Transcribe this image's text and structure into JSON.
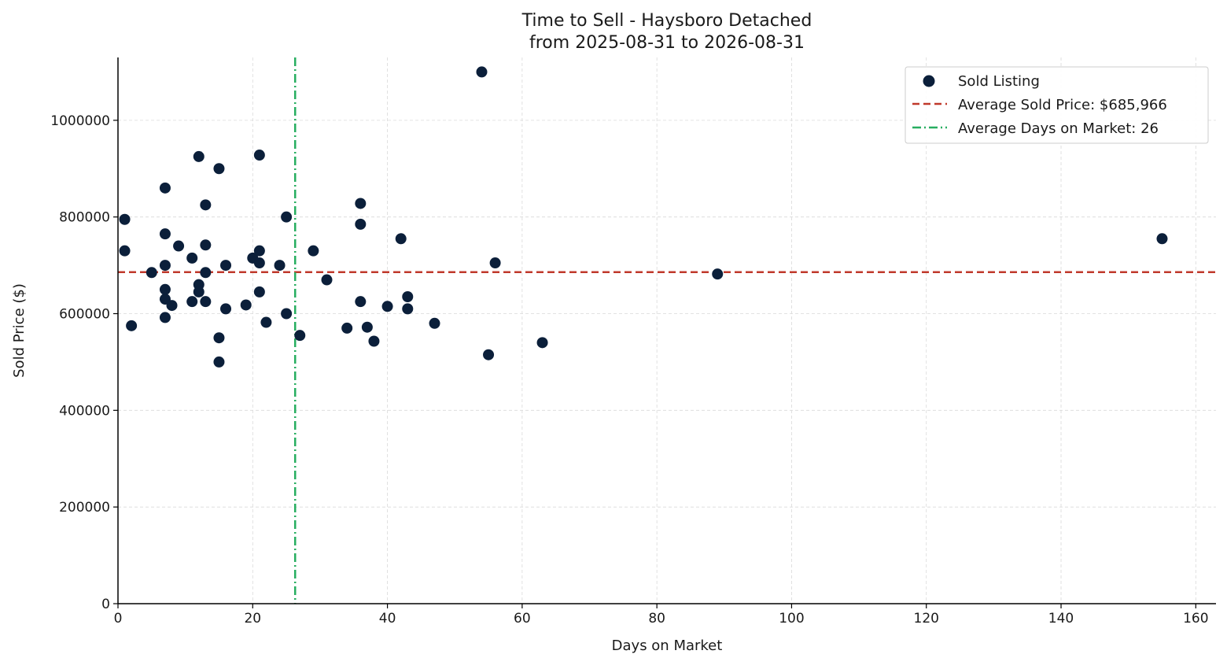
{
  "chart_data": {
    "type": "scatter",
    "title": "Time to Sell - Haysboro Detached",
    "subtitle": "from 2025-08-31 to 2026-08-31",
    "xlabel": "Days on Market",
    "ylabel": "Sold Price ($)",
    "xlim": [
      0,
      163
    ],
    "ylim": [
      0,
      1130000
    ],
    "xticks": [
      0,
      20,
      40,
      60,
      80,
      100,
      120,
      140,
      160
    ],
    "yticks": [
      0,
      200000,
      400000,
      600000,
      800000,
      1000000
    ],
    "grid": true,
    "legend_position": "top-right",
    "series": [
      {
        "name": "Sold Listing",
        "color": "#0b1f3a",
        "points": [
          {
            "x": 1,
            "y": 795000
          },
          {
            "x": 1,
            "y": 730000
          },
          {
            "x": 2,
            "y": 575000
          },
          {
            "x": 5,
            "y": 685000
          },
          {
            "x": 7,
            "y": 860000
          },
          {
            "x": 7,
            "y": 765000
          },
          {
            "x": 7,
            "y": 700000
          },
          {
            "x": 7,
            "y": 650000
          },
          {
            "x": 7,
            "y": 630000
          },
          {
            "x": 7,
            "y": 592000
          },
          {
            "x": 8,
            "y": 617000
          },
          {
            "x": 9,
            "y": 740000
          },
          {
            "x": 11,
            "y": 715000
          },
          {
            "x": 11,
            "y": 625000
          },
          {
            "x": 12,
            "y": 925000
          },
          {
            "x": 12,
            "y": 660000
          },
          {
            "x": 12,
            "y": 645000
          },
          {
            "x": 13,
            "y": 825000
          },
          {
            "x": 13,
            "y": 742000
          },
          {
            "x": 13,
            "y": 685000
          },
          {
            "x": 13,
            "y": 625000
          },
          {
            "x": 15,
            "y": 900000
          },
          {
            "x": 15,
            "y": 550000
          },
          {
            "x": 15,
            "y": 500000
          },
          {
            "x": 16,
            "y": 700000
          },
          {
            "x": 16,
            "y": 610000
          },
          {
            "x": 19,
            "y": 618000
          },
          {
            "x": 20,
            "y": 715000
          },
          {
            "x": 21,
            "y": 928000
          },
          {
            "x": 21,
            "y": 730000
          },
          {
            "x": 21,
            "y": 705000
          },
          {
            "x": 21,
            "y": 645000
          },
          {
            "x": 22,
            "y": 582000
          },
          {
            "x": 24,
            "y": 700000
          },
          {
            "x": 25,
            "y": 800000
          },
          {
            "x": 25,
            "y": 600000
          },
          {
            "x": 27,
            "y": 555000
          },
          {
            "x": 29,
            "y": 730000
          },
          {
            "x": 31,
            "y": 670000
          },
          {
            "x": 34,
            "y": 570000
          },
          {
            "x": 36,
            "y": 828000
          },
          {
            "x": 36,
            "y": 785000
          },
          {
            "x": 36,
            "y": 625000
          },
          {
            "x": 37,
            "y": 572000
          },
          {
            "x": 38,
            "y": 543000
          },
          {
            "x": 40,
            "y": 615000
          },
          {
            "x": 42,
            "y": 755000
          },
          {
            "x": 43,
            "y": 635000
          },
          {
            "x": 43,
            "y": 610000
          },
          {
            "x": 47,
            "y": 580000
          },
          {
            "x": 54,
            "y": 1100000
          },
          {
            "x": 55,
            "y": 515000
          },
          {
            "x": 56,
            "y": 705000
          },
          {
            "x": 63,
            "y": 540000
          },
          {
            "x": 89,
            "y": 682000
          },
          {
            "x": 155,
            "y": 755000
          }
        ]
      }
    ],
    "reference_lines": [
      {
        "name": "Average Sold Price: $685,966",
        "orientation": "horizontal",
        "value": 685966,
        "style": "dashed",
        "color": "#c0392b"
      },
      {
        "name": "Average Days on Market: 26",
        "orientation": "vertical",
        "value": 26.3,
        "style": "dashdot",
        "color": "#27ae60"
      }
    ]
  }
}
